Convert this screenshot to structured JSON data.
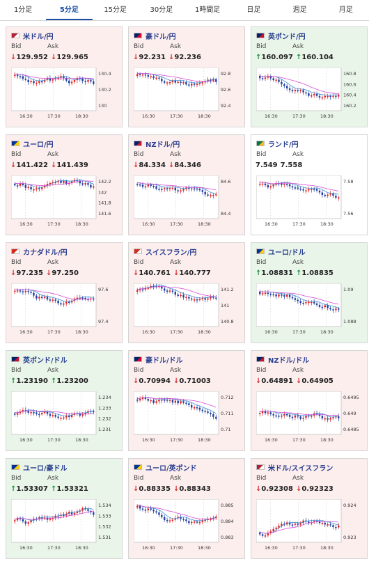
{
  "tabs": [
    "1分足",
    "5分足",
    "15分足",
    "30分足",
    "1時間足",
    "日足",
    "週足",
    "月足"
  ],
  "active_tab": 1,
  "labels": {
    "bid": "Bid",
    "ask": "Ask"
  },
  "cards": [
    {
      "pair": "米ドル/円",
      "dir": "down",
      "bid": "129.952",
      "ask": "129.965",
      "ticks": [
        "130.4",
        "130.2",
        "130"
      ],
      "times": [
        "16:30",
        "17:30",
        "18:30"
      ],
      "flag": "us-jp-flag",
      "trend": "down"
    },
    {
      "pair": "豪ドル/円",
      "dir": "down",
      "bid": "92.231",
      "ask": "92.236",
      "ticks": [
        "92.8",
        "92.6",
        "92.4"
      ],
      "times": [
        "16:30",
        "17:30",
        "18:30"
      ],
      "flag": "au-jp-flag",
      "trend": "down"
    },
    {
      "pair": "英ポンド/円",
      "dir": "up",
      "bid": "160.097",
      "ask": "160.104",
      "ticks": [
        "160.8",
        "160.6",
        "160.4",
        "160.2"
      ],
      "times": [
        "16:30",
        "17:30",
        "18:30"
      ],
      "flag": "gb-jp-flag",
      "trend": "down"
    },
    {
      "pair": "ユーロ/円",
      "dir": "down",
      "bid": "141.422",
      "ask": "141.439",
      "ticks": [
        "142.2",
        "142",
        "141.8",
        "141.6"
      ],
      "times": [
        "16:30",
        "17:30",
        "18:30"
      ],
      "flag": "eu-jp-flag",
      "trend": "down"
    },
    {
      "pair": "NZドル/円",
      "dir": "down",
      "bid": "84.334",
      "ask": "84.346",
      "ticks": [
        "84.6",
        "84.4"
      ],
      "times": [
        "16:30",
        "17:30",
        "18:30"
      ],
      "flag": "nz-jp-flag",
      "trend": "down"
    },
    {
      "pair": "ランド/円",
      "dir": "none",
      "bid": "7.549",
      "ask": "7.558",
      "ticks": [
        "7.58",
        "7.56"
      ],
      "times": [
        "16:30",
        "17:30",
        "18:30"
      ],
      "flag": "za-jp-flag",
      "trend": "down"
    },
    {
      "pair": "カナダドル/円",
      "dir": "down",
      "bid": "97.235",
      "ask": "97.250",
      "ticks": [
        "97.6",
        "97.4"
      ],
      "times": [
        "16:30",
        "17:30",
        "18:30"
      ],
      "flag": "ca-jp-flag",
      "trend": "down"
    },
    {
      "pair": "スイスフラン/円",
      "dir": "down",
      "bid": "140.761",
      "ask": "140.777",
      "ticks": [
        "141.2",
        "141",
        "140.8"
      ],
      "times": [
        "16:30",
        "17:30",
        "18:30"
      ],
      "flag": "ch-jp-flag",
      "trend": "down"
    },
    {
      "pair": "ユーロ/ドル",
      "dir": "up",
      "bid": "1.08831",
      "ask": "1.08835",
      "ticks": [
        "1.09",
        "1.088"
      ],
      "times": [
        "16:30",
        "17:30",
        "18:30"
      ],
      "flag": "eu-us-flag",
      "trend": "down"
    },
    {
      "pair": "英ポンド/ドル",
      "dir": "up",
      "bid": "1.23190",
      "ask": "1.23200",
      "ticks": [
        "1.234",
        "1.233",
        "1.232",
        "1.231"
      ],
      "times": [
        "16:30",
        "17:30",
        "18:30"
      ],
      "flag": "gb-us-flag",
      "trend": "flat"
    },
    {
      "pair": "豪ドル/ドル",
      "dir": "down",
      "bid": "0.70994",
      "ask": "0.71003",
      "ticks": [
        "0.712",
        "0.711",
        "0.71"
      ],
      "times": [
        "16:30",
        "17:30",
        "18:30"
      ],
      "flag": "au-us-flag",
      "trend": "down"
    },
    {
      "pair": "NZドル/ドル",
      "dir": "down",
      "bid": "0.64891",
      "ask": "0.64905",
      "ticks": [
        "0.6495",
        "0.649",
        "0.6485"
      ],
      "times": [
        "16:30",
        "17:30",
        "18:30"
      ],
      "flag": "nz-us-flag",
      "trend": "flat"
    },
    {
      "pair": "ユーロ/豪ドル",
      "dir": "up",
      "bid": "1.53307",
      "ask": "1.53321",
      "ticks": [
        "1.534",
        "1.533",
        "1.532",
        "1.531"
      ],
      "times": [
        "16:30",
        "17:30",
        "18:30"
      ],
      "flag": "eu-au-flag",
      "trend": "flat"
    },
    {
      "pair": "ユーロ/英ポンド",
      "dir": "down",
      "bid": "0.88335",
      "ask": "0.88343",
      "ticks": [
        "0.885",
        "0.884",
        "0.883"
      ],
      "times": [
        "16:30",
        "17:30",
        "18:30"
      ],
      "flag": "eu-gb-flag",
      "trend": "down"
    },
    {
      "pair": "米ドル/スイスフラン",
      "dir": "down",
      "bid": "0.92308",
      "ask": "0.92323",
      "ticks": [
        "0.924",
        "0.923"
      ],
      "times": [
        "16:30",
        "17:30",
        "18:30"
      ],
      "flag": "us-ch-flag",
      "trend": "up"
    }
  ],
  "colors": {
    "up": "#1a8f3a",
    "down": "#d62b2b",
    "candle_up": "#e02020",
    "candle_down": "#1f3fa0",
    "ma_short": "#3a8fd8",
    "ma_long": "#d54bd5"
  }
}
